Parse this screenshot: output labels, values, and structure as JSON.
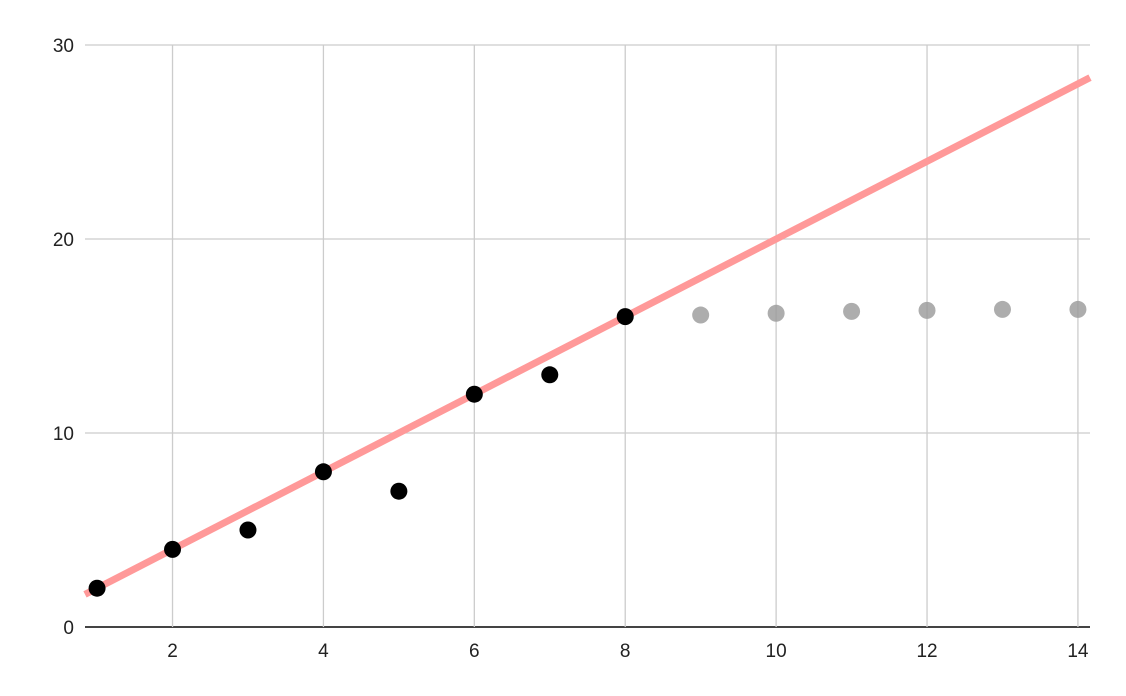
{
  "chart_data": {
    "type": "scatter",
    "title": "",
    "xlabel": "",
    "ylabel": "",
    "xlim": [
      0.84,
      14.16
    ],
    "ylim": [
      0,
      30
    ],
    "grid": true,
    "legend": "none",
    "x_ticks": [
      "2",
      "4",
      "6",
      "8",
      "10",
      "12",
      "14"
    ],
    "y_ticks": [
      "0",
      "10",
      "20",
      "30"
    ],
    "series": [
      {
        "x": [
          1,
          2,
          3,
          4,
          5,
          6,
          7,
          8
        ],
        "y": [
          2,
          4,
          5,
          8,
          7,
          12,
          13,
          16
        ],
        "color": "#000000"
      },
      {
        "x": [
          9,
          10,
          11,
          12,
          13,
          14
        ],
        "y": [
          16.08,
          16.17,
          16.27,
          16.32,
          16.37,
          16.37
        ],
        "color": "#999999"
      }
    ],
    "trendline": {
      "slope": 2,
      "intercept": 0,
      "color": "#ff9999"
    }
  }
}
